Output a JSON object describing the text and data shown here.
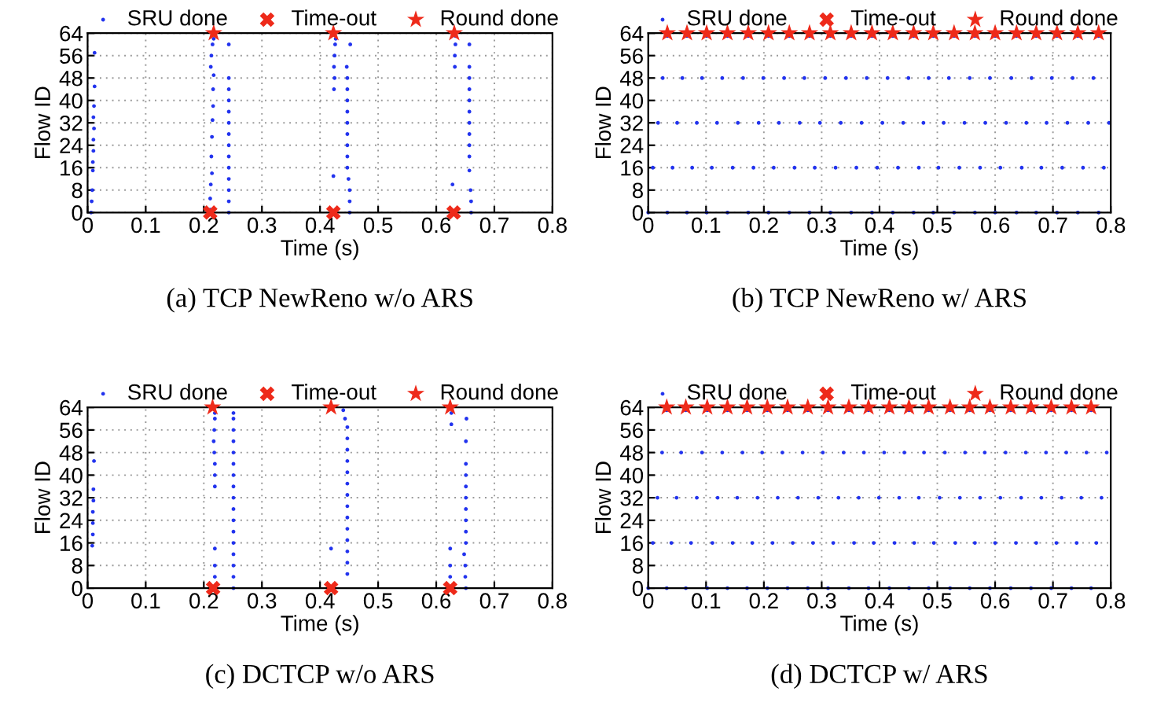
{
  "chart_data": [
    {
      "type": "scatter",
      "xlabel": "Time (s)",
      "ylabel": "Flow ID",
      "xlim": [
        0,
        0.8
      ],
      "ylim": [
        0,
        64
      ],
      "xticks": [
        0,
        0.1,
        0.2,
        0.3,
        0.4,
        0.5,
        0.6,
        0.7,
        0.8
      ],
      "yticks": [
        0,
        8,
        16,
        24,
        32,
        40,
        48,
        56,
        64
      ],
      "grid": true,
      "legend": "top",
      "annotations": [
        "(a) TCP NewReno w/o ARS"
      ],
      "series": [
        {
          "name": "SRU done",
          "color": "#2233ee",
          "marker": "circle",
          "x": [
            0.006,
            0.007,
            0.008,
            0.009,
            0.009,
            0.01,
            0.01,
            0.011,
            0.01,
            0.011,
            0.012,
            0.012,
            0.211,
            0.211,
            0.212,
            0.214,
            0.213,
            0.214,
            0.215,
            0.216,
            0.216,
            0.217,
            0.212,
            0.213,
            0.215,
            0.217,
            0.243,
            0.243,
            0.243,
            0.243,
            0.243,
            0.243,
            0.243,
            0.243,
            0.243,
            0.243,
            0.243,
            0.243,
            0.243,
            0.243,
            0.423,
            0.424,
            0.425,
            0.424,
            0.425,
            0.426,
            0.427,
            0.451,
            0.451,
            0.451,
            0.449,
            0.447,
            0.447,
            0.447,
            0.447,
            0.447,
            0.447,
            0.447,
            0.447,
            0.447,
            0.446,
            0.452,
            0.628,
            0.632,
            0.632,
            0.633,
            0.633,
            0.66,
            0.66,
            0.659,
            0.657,
            0.657,
            0.657,
            0.657,
            0.657,
            0.657,
            0.657,
            0.657,
            0.657,
            0.657,
            0.657
          ],
          "values": [
            0,
            4,
            8,
            15,
            18,
            22,
            26,
            30,
            34,
            38,
            45,
            57,
            1,
            5,
            10,
            14,
            20,
            27,
            33,
            38,
            44,
            49,
            52,
            56,
            60,
            62,
            0,
            4,
            8,
            12,
            16,
            20,
            24,
            28,
            32,
            36,
            40,
            44,
            48,
            60,
            13,
            44,
            48,
            52,
            56,
            60,
            62,
            0,
            4,
            8,
            12,
            16,
            20,
            24,
            28,
            32,
            36,
            40,
            44,
            48,
            52,
            60,
            10,
            52,
            56,
            60,
            63,
            0,
            4,
            8,
            15,
            20,
            24,
            28,
            32,
            36,
            40,
            44,
            48,
            52,
            60
          ]
        },
        {
          "name": "Time-out",
          "color": "#ee2a1a",
          "marker": "cross",
          "x": [
            0.211,
            0.423,
            0.63
          ],
          "values": [
            0,
            0,
            0
          ]
        },
        {
          "name": "Round done",
          "color": "#ee2a1a",
          "marker": "star",
          "x": [
            0.217,
            0.423,
            0.631
          ],
          "values": [
            64,
            64,
            64
          ]
        }
      ]
    },
    {
      "type": "scatter",
      "xlabel": "Time (s)",
      "ylabel": "Flow ID",
      "xlim": [
        0,
        0.8
      ],
      "ylim": [
        0,
        64
      ],
      "xticks": [
        0,
        0.1,
        0.2,
        0.3,
        0.4,
        0.5,
        0.6,
        0.7,
        0.8
      ],
      "yticks": [
        0,
        8,
        16,
        24,
        32,
        40,
        48,
        56,
        64
      ],
      "grid": true,
      "legend": "top",
      "annotations": [
        "(b) TCP NewReno w/ ARS"
      ],
      "series": [
        {
          "name": "SRU done",
          "color": "#2233ee",
          "marker": "circle",
          "x": [
            0.0,
            0.008,
            0.017,
            0.025,
            0.033,
            0.033,
            0.042,
            0.05,
            0.059,
            0.067,
            0.067,
            0.076,
            0.084,
            0.093,
            0.101,
            0.101,
            0.11,
            0.119,
            0.128,
            0.137,
            0.137,
            0.146,
            0.155,
            0.164,
            0.173,
            0.173,
            0.182,
            0.191,
            0.199,
            0.208,
            0.208,
            0.217,
            0.226,
            0.235,
            0.244,
            0.244,
            0.253,
            0.262,
            0.27,
            0.279,
            0.279,
            0.288,
            0.297,
            0.306,
            0.315,
            0.315,
            0.324,
            0.333,
            0.342,
            0.351,
            0.351,
            0.36,
            0.369,
            0.378,
            0.387,
            0.387,
            0.396,
            0.405,
            0.414,
            0.423,
            0.423,
            0.432,
            0.441,
            0.45,
            0.459,
            0.459,
            0.468,
            0.476,
            0.485,
            0.493,
            0.493,
            0.502,
            0.511,
            0.52,
            0.529,
            0.529,
            0.538,
            0.547,
            0.556,
            0.565,
            0.565,
            0.574,
            0.583,
            0.591,
            0.6,
            0.6,
            0.609,
            0.619,
            0.628,
            0.637,
            0.637,
            0.646,
            0.654,
            0.663,
            0.671,
            0.671,
            0.68,
            0.689,
            0.698,
            0.707,
            0.707,
            0.716,
            0.725,
            0.734,
            0.743,
            0.743,
            0.752,
            0.761,
            0.77,
            0.779,
            0.779,
            0.788,
            0.797
          ],
          "values": [
            0,
            16,
            32,
            48,
            63,
            0,
            16,
            32,
            48,
            63,
            0,
            16,
            32,
            48,
            63,
            0,
            16,
            32,
            48,
            63,
            0,
            16,
            32,
            48,
            63,
            0,
            16,
            32,
            48,
            63,
            0,
            16,
            32,
            48,
            63,
            0,
            16,
            32,
            48,
            63,
            0,
            16,
            32,
            48,
            63,
            0,
            16,
            32,
            48,
            63,
            0,
            16,
            32,
            48,
            63,
            0,
            16,
            32,
            48,
            63,
            0,
            16,
            32,
            48,
            63,
            0,
            16,
            32,
            48,
            63,
            0,
            16,
            32,
            48,
            63,
            0,
            16,
            32,
            48,
            63,
            0,
            16,
            32,
            48,
            63,
            0,
            16,
            32,
            48,
            63,
            0,
            16,
            32,
            48,
            63,
            0,
            16,
            32,
            48,
            63,
            0,
            16,
            32,
            48,
            63,
            0,
            16,
            32,
            48,
            63,
            0,
            16,
            32
          ]
        },
        {
          "name": "Time-out",
          "color": "#ee2a1a",
          "marker": "cross"
        },
        {
          "name": "Round done",
          "color": "#ee2a1a",
          "marker": "star",
          "x": [
            0.033,
            0.067,
            0.101,
            0.137,
            0.173,
            0.208,
            0.244,
            0.279,
            0.315,
            0.351,
            0.387,
            0.423,
            0.459,
            0.493,
            0.529,
            0.565,
            0.6,
            0.637,
            0.671,
            0.707,
            0.743,
            0.779
          ],
          "values": [
            64,
            64,
            64,
            64,
            64,
            64,
            64,
            64,
            64,
            64,
            64,
            64,
            64,
            64,
            64,
            64,
            64,
            64,
            64,
            64,
            64,
            64
          ]
        }
      ]
    },
    {
      "type": "scatter",
      "xlabel": "Time (s)",
      "ylabel": "Flow ID",
      "xlim": [
        0,
        0.8
      ],
      "ylim": [
        0,
        64
      ],
      "xticks": [
        0,
        0.1,
        0.2,
        0.3,
        0.4,
        0.5,
        0.6,
        0.7,
        0.8
      ],
      "yticks": [
        0,
        8,
        16,
        24,
        32,
        40,
        48,
        56,
        64
      ],
      "grid": true,
      "legend": "top",
      "annotations": [
        "(c) DCTCP w/o ARS"
      ],
      "series": [
        {
          "name": "SRU done",
          "color": "#2233ee",
          "marker": "circle",
          "x": [
            0.008,
            0.009,
            0.009,
            0.009,
            0.01,
            0.01,
            0.011,
            0.219,
            0.219,
            0.219,
            0.219,
            0.219,
            0.219,
            0.218,
            0.217,
            0.218,
            0.219,
            0.219,
            0.251,
            0.251,
            0.251,
            0.251,
            0.251,
            0.251,
            0.251,
            0.251,
            0.251,
            0.251,
            0.251,
            0.251,
            0.251,
            0.251,
            0.251,
            0.251,
            0.251,
            0.419,
            0.44,
            0.443,
            0.447,
            0.447,
            0.447,
            0.447,
            0.447,
            0.447,
            0.447,
            0.447,
            0.447,
            0.447,
            0.447,
            0.447,
            0.447,
            0.447,
            0.624,
            0.624,
            0.624,
            0.626,
            0.626,
            0.651,
            0.65,
            0.65,
            0.648,
            0.651,
            0.651,
            0.651,
            0.651,
            0.651,
            0.651,
            0.651,
            0.651,
            0.651,
            0.652
          ],
          "values": [
            15,
            19,
            23,
            27,
            31,
            35,
            45,
            4,
            8,
            14,
            36,
            40,
            44,
            48,
            52,
            56,
            60,
            62,
            0,
            4,
            8,
            12,
            16,
            20,
            24,
            28,
            32,
            36,
            40,
            44,
            48,
            52,
            56,
            60,
            62,
            14,
            63,
            60,
            5,
            9,
            13,
            17,
            21,
            25,
            29,
            33,
            37,
            41,
            45,
            49,
            53,
            57,
            4,
            8,
            14,
            58,
            62,
            0,
            4,
            8,
            12,
            16,
            20,
            24,
            28,
            32,
            36,
            40,
            44,
            52,
            60
          ]
        },
        {
          "name": "Time-out",
          "color": "#ee2a1a",
          "marker": "cross",
          "x": [
            0.216,
            0.419,
            0.624
          ],
          "values": [
            0,
            0,
            0
          ]
        },
        {
          "name": "Round done",
          "color": "#ee2a1a",
          "marker": "star",
          "x": [
            0.215,
            0.419,
            0.624
          ],
          "values": [
            64,
            64,
            64
          ]
        }
      ]
    },
    {
      "type": "scatter",
      "xlabel": "Time (s)",
      "ylabel": "Flow ID",
      "xlim": [
        0,
        0.8
      ],
      "ylim": [
        0,
        64
      ],
      "xticks": [
        0,
        0.1,
        0.2,
        0.3,
        0.4,
        0.5,
        0.6,
        0.7,
        0.8
      ],
      "yticks": [
        0,
        8,
        16,
        24,
        32,
        40,
        48,
        56,
        64
      ],
      "grid": true,
      "legend": "top",
      "annotations": [
        "(d) DCTCP w/ ARS"
      ],
      "series": [
        {
          "name": "SRU done",
          "color": "#2233ee",
          "marker": "circle",
          "x": [
            0.0,
            0.008,
            0.016,
            0.024,
            0.032,
            0.032,
            0.04,
            0.049,
            0.057,
            0.065,
            0.065,
            0.074,
            0.084,
            0.093,
            0.102,
            0.102,
            0.111,
            0.12,
            0.128,
            0.137,
            0.137,
            0.146,
            0.154,
            0.163,
            0.171,
            0.171,
            0.18,
            0.189,
            0.197,
            0.206,
            0.206,
            0.215,
            0.224,
            0.232,
            0.241,
            0.241,
            0.25,
            0.259,
            0.267,
            0.276,
            0.276,
            0.285,
            0.294,
            0.302,
            0.311,
            0.311,
            0.32,
            0.329,
            0.338,
            0.347,
            0.347,
            0.356,
            0.364,
            0.373,
            0.381,
            0.381,
            0.39,
            0.399,
            0.408,
            0.417,
            0.417,
            0.426,
            0.434,
            0.443,
            0.451,
            0.451,
            0.46,
            0.468,
            0.477,
            0.485,
            0.485,
            0.494,
            0.504,
            0.513,
            0.522,
            0.522,
            0.531,
            0.539,
            0.548,
            0.556,
            0.556,
            0.565,
            0.574,
            0.582,
            0.591,
            0.591,
            0.6,
            0.609,
            0.618,
            0.627,
            0.627,
            0.636,
            0.645,
            0.653,
            0.662,
            0.662,
            0.671,
            0.68,
            0.688,
            0.697,
            0.697,
            0.706,
            0.715,
            0.723,
            0.732,
            0.732,
            0.741,
            0.749,
            0.758,
            0.766,
            0.766,
            0.775,
            0.784,
            0.793
          ],
          "values": [
            0,
            16,
            32,
            48,
            63,
            0,
            16,
            32,
            48,
            63,
            0,
            16,
            32,
            48,
            63,
            0,
            16,
            32,
            48,
            63,
            0,
            16,
            32,
            48,
            63,
            0,
            16,
            32,
            48,
            63,
            0,
            16,
            32,
            48,
            63,
            0,
            16,
            32,
            48,
            63,
            0,
            16,
            32,
            48,
            63,
            0,
            16,
            32,
            48,
            63,
            0,
            16,
            32,
            48,
            63,
            0,
            16,
            32,
            48,
            63,
            0,
            16,
            32,
            48,
            63,
            0,
            16,
            32,
            48,
            63,
            0,
            16,
            32,
            48,
            63,
            0,
            16,
            32,
            48,
            63,
            0,
            16,
            32,
            48,
            63,
            0,
            16,
            32,
            48,
            63,
            0,
            16,
            32,
            48,
            63,
            0,
            16,
            32,
            48,
            63,
            0,
            16,
            32,
            48,
            63,
            0,
            16,
            32,
            48,
            63,
            0,
            16,
            32,
            48
          ]
        },
        {
          "name": "Time-out",
          "color": "#ee2a1a",
          "marker": "cross"
        },
        {
          "name": "Round done",
          "color": "#ee2a1a",
          "marker": "star",
          "x": [
            0.032,
            0.065,
            0.102,
            0.137,
            0.171,
            0.206,
            0.241,
            0.276,
            0.311,
            0.347,
            0.381,
            0.417,
            0.451,
            0.485,
            0.522,
            0.556,
            0.591,
            0.627,
            0.662,
            0.697,
            0.732,
            0.766
          ],
          "values": [
            64,
            64,
            64,
            64,
            64,
            64,
            64,
            64,
            64,
            64,
            64,
            64,
            64,
            64,
            64,
            64,
            64,
            64,
            64,
            64,
            64,
            64
          ]
        }
      ]
    }
  ]
}
